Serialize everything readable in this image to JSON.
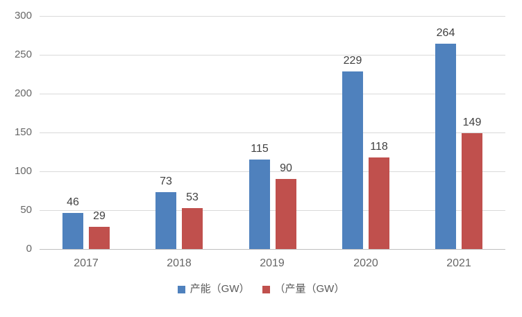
{
  "chart_data": {
    "type": "bar",
    "title": "",
    "categories": [
      "2017",
      "2018",
      "2019",
      "2020",
      "2021"
    ],
    "series": [
      {
        "name": "产能（GW）",
        "color": "#4F81BD",
        "values": [
          46,
          73,
          115,
          229,
          264
        ]
      },
      {
        "name": "（产量（GW）",
        "color": "#C0504D",
        "values": [
          29,
          53,
          90,
          118,
          149
        ]
      }
    ],
    "ylim": [
      0,
      300
    ],
    "yticks": [
      0,
      50,
      100,
      150,
      200,
      250,
      300
    ],
    "grid": true,
    "data_labels": true,
    "legend_position": "bottom"
  },
  "colors": {
    "background": "#FFFFFF",
    "grid": "#D9D9D9",
    "axis_line": "#BFBFBF",
    "axis_text": "#666666",
    "data_label_text": "#404040",
    "legend_text": "#595959"
  }
}
